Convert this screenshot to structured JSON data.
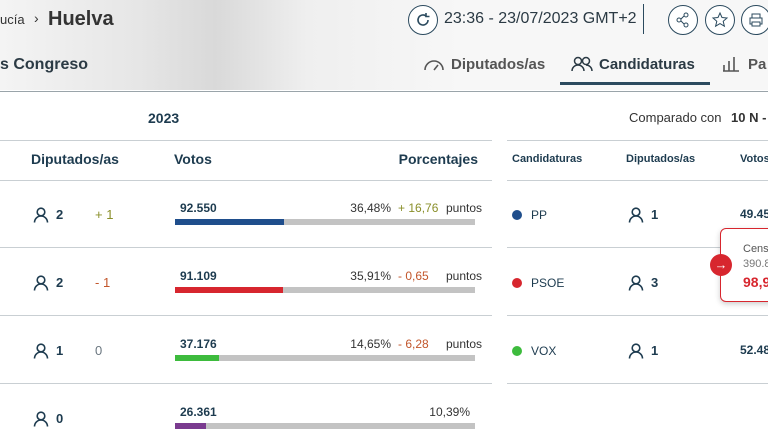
{
  "header": {
    "region": "ucía",
    "separator": "›",
    "province": "Huelva",
    "timestamp": "23:36 - 23/07/2023 GMT+2",
    "section": "s Congreso"
  },
  "tabs": [
    "Diputados/as",
    "Candidaturas",
    "Pa"
  ],
  "results": {
    "year": "2023",
    "compared_label": "Comparado con",
    "compared_value": "10 N -",
    "columns": [
      "Diputados/as",
      "Votos",
      "Porcentajes"
    ],
    "rows": [
      {
        "seats": "2",
        "change": "+ 1",
        "change_color": "#8a8f2a",
        "votes": "92.550",
        "percent": {
          "value": 36.48,
          "label": "36,48%"
        },
        "diff": "+ 16,76",
        "diff_color": "#8a8f2a",
        "unit": "puntos",
        "color": "#1f4e8c"
      },
      {
        "seats": "2",
        "change": "- 1",
        "change_color": "#c2562b",
        "votes": "91.109",
        "percent": {
          "value": 35.91,
          "label": "35,91%"
        },
        "diff": "- 0,65",
        "diff_color": "#c2562b",
        "unit": "puntos",
        "color": "#d7262e"
      },
      {
        "seats": "1",
        "change": "0",
        "change_color": "#6b7780",
        "votes": "37.176",
        "percent": {
          "value": 14.65,
          "label": "14,65%"
        },
        "diff": "- 6,28",
        "diff_color": "#c2562b",
        "unit": "puntos",
        "color": "#3dbb3d"
      },
      {
        "seats": "0",
        "votes": "26.361",
        "percent": {
          "value": 10.39,
          "label": "10,39%"
        },
        "color": "#7a3b8f"
      }
    ]
  },
  "comparison": {
    "columns": [
      "Candidaturas",
      "Diputados/as",
      "Votos"
    ],
    "rows": [
      {
        "party": "PP",
        "color": "#1f4e8c",
        "seats": "1",
        "votes": "49.45"
      },
      {
        "party": "PSOE",
        "color": "#d7262e",
        "seats": "3"
      },
      {
        "party": "VOX",
        "color": "#3dbb3d",
        "seats": "1",
        "votes": "52.48"
      }
    ]
  },
  "tooltip": {
    "label": "Cens",
    "value": "390.8",
    "percent": "98,9"
  }
}
